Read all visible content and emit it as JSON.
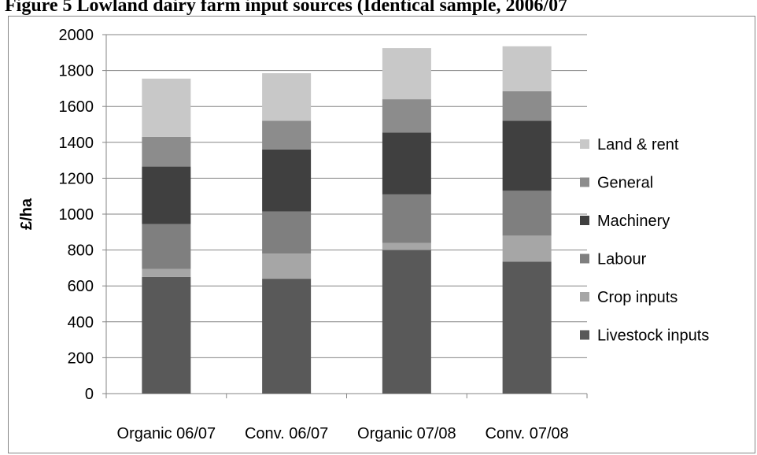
{
  "page": {
    "title": "Figure 5 Lowland dairy farm input sources (Identical sample, 2006/07"
  },
  "chart_data": {
    "type": "bar",
    "stacked": true,
    "categories": [
      "Organic 06/07",
      "Conv. 06/07",
      "Organic 07/08",
      "Conv. 07/08"
    ],
    "ylabel": "£/ha",
    "xlabel": "",
    "ylim": [
      0,
      2000
    ],
    "yticks": [
      0,
      200,
      400,
      600,
      800,
      1000,
      1200,
      1400,
      1600,
      1800,
      2000
    ],
    "grid": true,
    "legend_position": "right",
    "series": [
      {
        "name": "Livestock inputs",
        "color": "#595959",
        "values": [
          650,
          640,
          800,
          735
        ]
      },
      {
        "name": "Crop inputs",
        "color": "#a6a6a6",
        "values": [
          45,
          140,
          40,
          145
        ]
      },
      {
        "name": "Labour",
        "color": "#7f7f7f",
        "values": [
          250,
          235,
          270,
          250
        ]
      },
      {
        "name": "Machinery",
        "color": "#404040",
        "values": [
          320,
          345,
          345,
          390
        ]
      },
      {
        "name": "General",
        "color": "#8c8c8c",
        "values": [
          165,
          160,
          185,
          165
        ]
      },
      {
        "name": "Land & rent",
        "color": "#c8c8c8",
        "values": [
          325,
          265,
          285,
          250
        ]
      }
    ]
  }
}
